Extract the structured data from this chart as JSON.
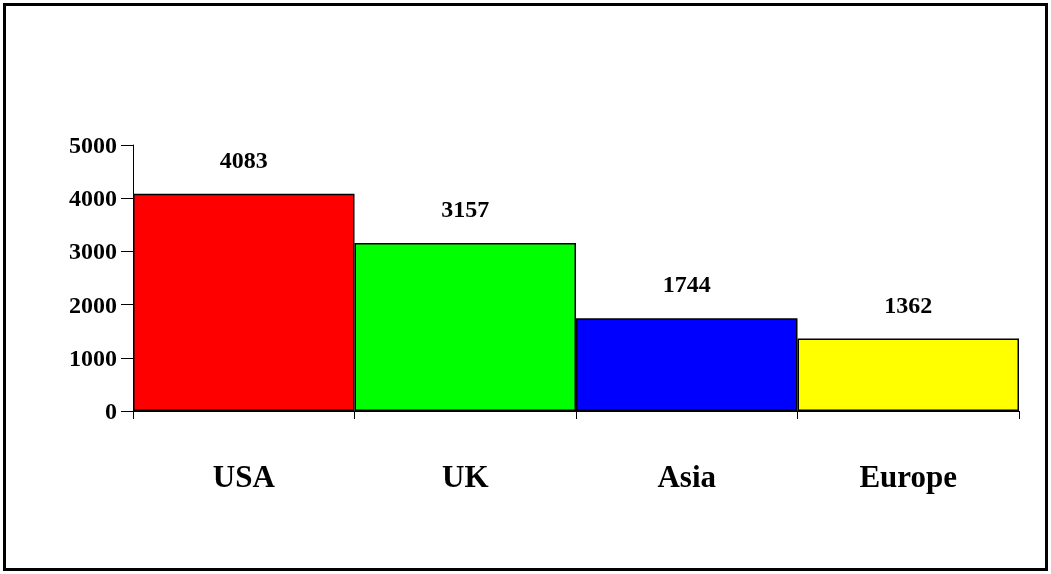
{
  "chart_data": {
    "type": "bar",
    "categories": [
      "USA",
      "UK",
      "Asia",
      "Europe"
    ],
    "values": [
      4083,
      3157,
      1744,
      1362
    ],
    "colors": [
      "#ff0000",
      "#00ff00",
      "#0000ff",
      "#ffff00"
    ],
    "ylim": [
      0,
      5000
    ],
    "yticks": [
      0,
      1000,
      2000,
      3000,
      4000,
      5000
    ],
    "data_labels": true
  }
}
